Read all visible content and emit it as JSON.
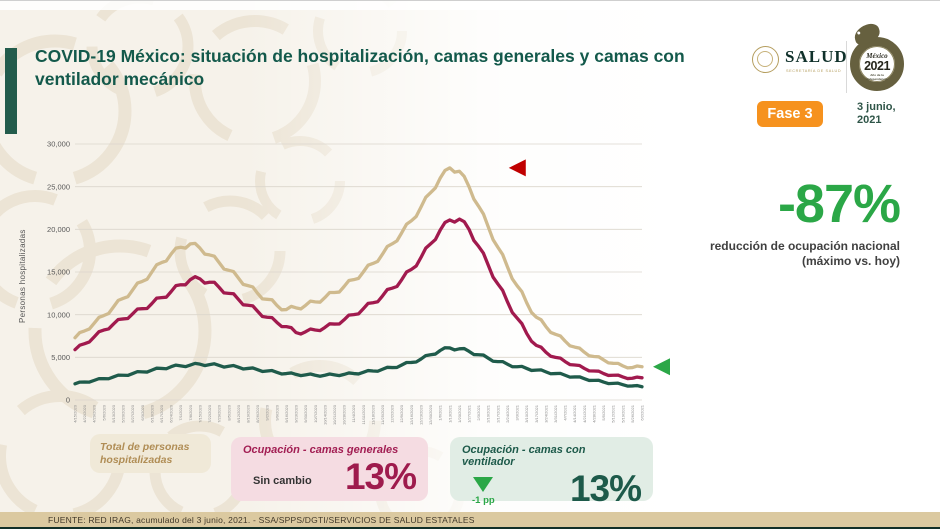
{
  "header": {
    "title": "COVID-19 México: situación de hospitalización, camas generales y camas con ventilador mecánico",
    "salud_logo": {
      "name": "SALUD",
      "subtitle": "SECRETARÍA DE SALUD"
    },
    "year_logo": {
      "country": "México",
      "year": "2021",
      "subtitle": "Año de la Independencia"
    },
    "phase_badge": "Fase 3",
    "date_line1": "3 junio,",
    "date_line2": "2021"
  },
  "highlight": {
    "value": "-87%",
    "caption_line1": "reducción de ocupación nacional",
    "caption_line2": "(máximo vs. hoy)"
  },
  "cards": [
    {
      "title": "Total de personas hospitalizadas"
    },
    {
      "title": "Ocupación - camas generales",
      "change_label": "Sin cambio",
      "value": "13%"
    },
    {
      "title": "Ocupación - camas con ventilador",
      "change_label": "-1 pp",
      "change_icon": "triangle-down",
      "value": "13%"
    }
  ],
  "footer": {
    "source": "FUENTE: RED IRAG, acumulado del 3 junio, 2021. -  SSA/SPPS/DGTI/SERVICIOS DE SALUD ESTATALES"
  },
  "colors": {
    "accent_green": "#2BA747",
    "deep_green": "#1D5A4A",
    "maroon": "#9E1B4D",
    "tan_line": "#CFBA8E",
    "orange": "#F6921E",
    "title_green": "#13594B"
  },
  "chart_data": {
    "type": "line",
    "ylabel": "Personas hospitalizadas",
    "ylim": [
      0,
      30000
    ],
    "ytick_step": 5000,
    "grid": true,
    "legend_position": "none",
    "x": [
      "4/15/2020",
      "4/22/2020",
      "4/29/2020",
      "5/6/2020",
      "5/13/2020",
      "5/20/2020",
      "5/27/2020",
      "6/3/2020",
      "6/10/2020",
      "6/17/2020",
      "6/24/2020",
      "7/1/2020",
      "7/8/2020",
      "7/15/2020",
      "7/22/2020",
      "7/29/2020",
      "8/5/2020",
      "8/12/2020",
      "8/19/2020",
      "8/26/2020",
      "9/2/2020",
      "9/9/2020",
      "9/16/2020",
      "9/23/2020",
      "9/30/2020",
      "10/7/2020",
      "10/14/2020",
      "10/21/2020",
      "10/28/2020",
      "11/4/2020",
      "11/11/2020",
      "11/18/2020",
      "11/25/2020",
      "12/2/2020",
      "12/9/2020",
      "12/16/2020",
      "12/23/2020",
      "12/30/2020",
      "1/6/2021",
      "1/13/2021",
      "1/20/2021",
      "1/27/2021",
      "2/3/2021",
      "2/10/2021",
      "2/17/2021",
      "2/24/2021",
      "3/3/2021",
      "3/10/2021",
      "3/17/2021",
      "3/24/2021",
      "3/31/2021",
      "4/7/2021",
      "4/14/2021",
      "4/21/2021",
      "4/28/2021",
      "5/5/2021",
      "5/12/2021",
      "5/19/2021",
      "5/26/2021",
      "6/2/2021"
    ],
    "series": [
      {
        "name": "Total de personas hospitalizadas",
        "color": "#CFBA8E",
        "values": [
          7300,
          8100,
          9000,
          9900,
          10900,
          11900,
          12900,
          13900,
          15000,
          16100,
          17100,
          17900,
          18300,
          17800,
          17000,
          16100,
          15200,
          14300,
          13400,
          12500,
          11800,
          11100,
          10600,
          10800,
          11100,
          11500,
          12000,
          12600,
          13300,
          14100,
          15000,
          16000,
          17100,
          18300,
          19600,
          21000,
          22600,
          24300,
          26000,
          27200,
          26800,
          25000,
          22700,
          20300,
          17900,
          15600,
          13400,
          11400,
          9700,
          8600,
          7700,
          6900,
          6200,
          5600,
          5100,
          4700,
          4300,
          4000,
          3800,
          3900
        ]
      },
      {
        "name": "Ocupación - camas generales",
        "color": "#A11A4E",
        "values": [
          5900,
          6600,
          7400,
          8200,
          8900,
          9500,
          10100,
          10700,
          11300,
          12000,
          12700,
          13500,
          14100,
          14200,
          13800,
          13200,
          12500,
          11800,
          11100,
          10400,
          9700,
          9100,
          8600,
          7900,
          8000,
          8200,
          8500,
          8900,
          9400,
          10000,
          10700,
          11400,
          12200,
          13100,
          14100,
          15300,
          16700,
          18300,
          19900,
          21100,
          21200,
          20000,
          18000,
          15800,
          13600,
          11500,
          9600,
          7800,
          6400,
          5600,
          5000,
          4500,
          4100,
          3700,
          3400,
          3100,
          2900,
          2700,
          2550,
          2600
        ]
      },
      {
        "name": "Ocupación - camas con ventilador",
        "color": "#1F5B4B",
        "values": [
          1900,
          2100,
          2300,
          2500,
          2700,
          2900,
          3100,
          3300,
          3500,
          3700,
          3900,
          4000,
          4100,
          4200,
          4150,
          4050,
          3950,
          3850,
          3700,
          3550,
          3400,
          3250,
          3100,
          3000,
          2950,
          2900,
          2900,
          2950,
          3000,
          3100,
          3250,
          3400,
          3600,
          3800,
          4100,
          4400,
          4800,
          5300,
          5800,
          6100,
          6000,
          5700,
          5300,
          4900,
          4500,
          4200,
          3900,
          3700,
          3500,
          3300,
          3100,
          2900,
          2700,
          2500,
          2300,
          2100,
          1950,
          1800,
          1650,
          1550
        ]
      }
    ],
    "markers": [
      {
        "shape": "triangle-left",
        "color": "#C00000",
        "series": 0,
        "point_index": 39,
        "offset_x": 59
      },
      {
        "shape": "triangle-left",
        "color": "#2BA747",
        "series": 0,
        "point_index": 59,
        "offset_x": 11
      }
    ]
  }
}
